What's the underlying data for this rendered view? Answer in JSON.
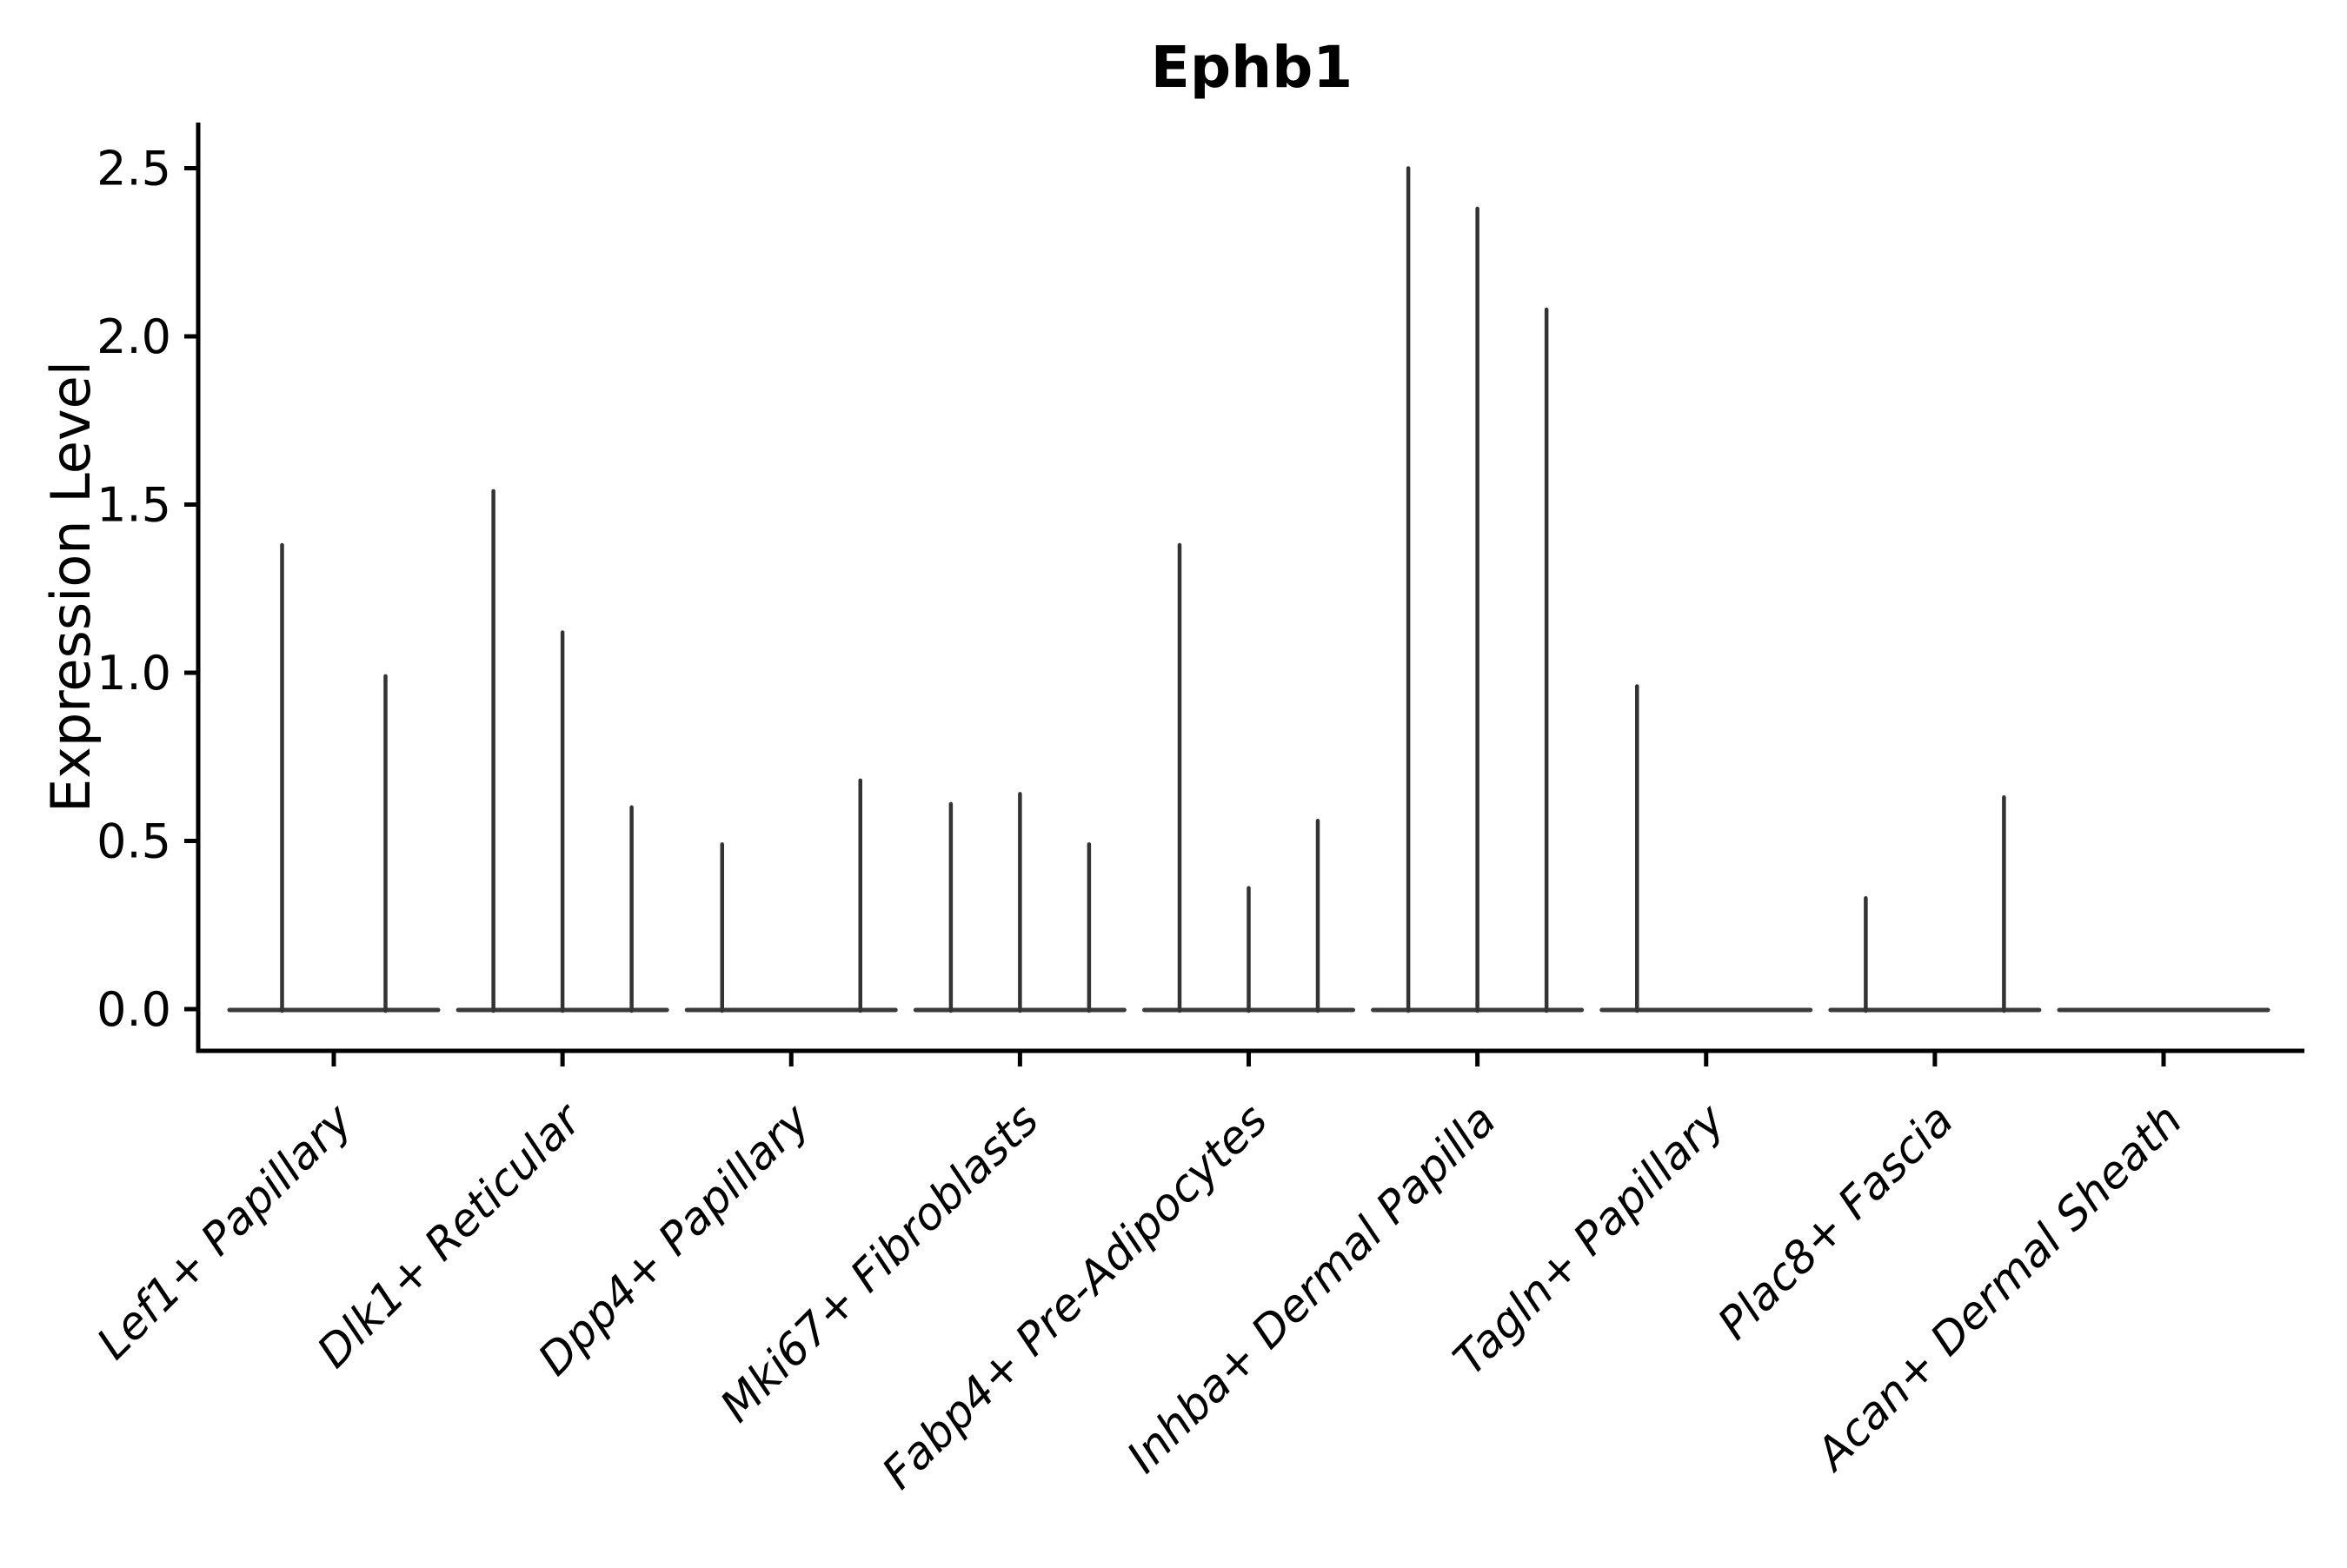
{
  "colors": {
    "background": "#ffffff",
    "axis": "#000000",
    "text": "#000000",
    "violin_spike": "#333333",
    "violin_baseline": "#3a3a3a"
  },
  "chart_data": {
    "type": "violin",
    "title": "Ephb1",
    "xlabel": "",
    "ylabel": "Expression Level",
    "yticks": [
      "0.0",
      "0.5",
      "1.0",
      "1.5",
      "2.0",
      "2.5"
    ],
    "ylim": [
      -0.12,
      2.64
    ],
    "grid": false,
    "legend": "none",
    "description": "Violin plot of Ephb1 expression; violins are collapsed to thin vertical spikes reaching the max expression value, with a flat baseline at 0 for each cell-type group. Groups contain up to 3 dodged violins.",
    "categories": [
      "Lef1+ Papillary",
      "Dlk1+ Reticular",
      "Dpp4+ Papillary",
      "Mki67+ Fibroblasts",
      "Fabp4+ Pre-Adipocytes",
      "Inhba+ Dermal Papilla",
      "Tagln+ Papillary",
      "Plac8+ Fascia",
      "Acan+ Dermal Sheath"
    ],
    "groups": [
      {
        "category": "Lef1+ Papillary",
        "slots": 2,
        "spikes": [
          {
            "slot": 1,
            "max": 1.38
          },
          {
            "slot": 2,
            "max": 0.99
          }
        ]
      },
      {
        "category": "Dlk1+ Reticular",
        "slots": 3,
        "spikes": [
          {
            "slot": 1,
            "max": 1.54
          },
          {
            "slot": 2,
            "max": 1.12
          },
          {
            "slot": 3,
            "max": 0.6
          }
        ]
      },
      {
        "category": "Dpp4+ Papillary",
        "slots": 3,
        "spikes": [
          {
            "slot": 1,
            "max": 0.49
          },
          {
            "slot": 2,
            "max": 0.0
          },
          {
            "slot": 3,
            "max": 0.68
          }
        ]
      },
      {
        "category": "Mki67+ Fibroblasts",
        "slots": 3,
        "spikes": [
          {
            "slot": 1,
            "max": 0.61
          },
          {
            "slot": 2,
            "max": 0.64
          },
          {
            "slot": 3,
            "max": 0.49
          }
        ]
      },
      {
        "category": "Fabp4+ Pre-Adipocytes",
        "slots": 3,
        "spikes": [
          {
            "slot": 1,
            "max": 1.38
          },
          {
            "slot": 2,
            "max": 0.36
          },
          {
            "slot": 3,
            "max": 0.56
          }
        ]
      },
      {
        "category": "Inhba+ Dermal Papilla",
        "slots": 3,
        "spikes": [
          {
            "slot": 1,
            "max": 2.5
          },
          {
            "slot": 2,
            "max": 2.38
          },
          {
            "slot": 3,
            "max": 2.08
          }
        ]
      },
      {
        "category": "Tagln+ Papillary",
        "slots": 3,
        "spikes": [
          {
            "slot": 1,
            "max": 0.96
          },
          {
            "slot": 2,
            "max": 0.0
          },
          {
            "slot": 3,
            "max": 0.0
          }
        ]
      },
      {
        "category": "Plac8+ Fascia",
        "slots": 3,
        "spikes": [
          {
            "slot": 1,
            "max": 0.33
          },
          {
            "slot": 2,
            "max": 0.0
          },
          {
            "slot": 3,
            "max": 0.63
          }
        ]
      },
      {
        "category": "Acan+ Dermal Sheath",
        "slots": 3,
        "spikes": []
      }
    ]
  }
}
